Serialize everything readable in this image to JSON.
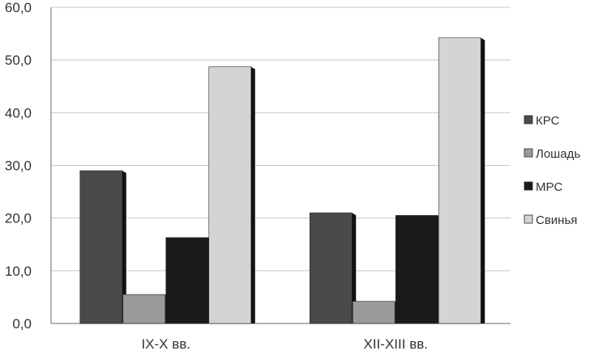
{
  "chart_data": {
    "type": "bar",
    "categories": [
      "IX-X вв.",
      "XII-XIII вв."
    ],
    "series": [
      {
        "name": "КРС",
        "values": [
          29.0,
          21.0
        ],
        "color": "#4a4a4a"
      },
      {
        "name": "Лошадь",
        "values": [
          5.5,
          4.2
        ],
        "color": "#9a9a9a"
      },
      {
        "name": "МРС",
        "values": [
          16.3,
          20.5
        ],
        "color": "#1a1a1a"
      },
      {
        "name": "Свинья",
        "values": [
          48.7,
          54.2
        ],
        "color": "#d4d4d4"
      }
    ],
    "ylim": [
      0,
      60
    ],
    "yticks": [
      "0,0",
      "10,0",
      "20,0",
      "30,0",
      "40,0",
      "50,0",
      "60,0"
    ],
    "grid": true,
    "legend_position": "right",
    "title": "",
    "xlabel": "",
    "ylabel": ""
  }
}
